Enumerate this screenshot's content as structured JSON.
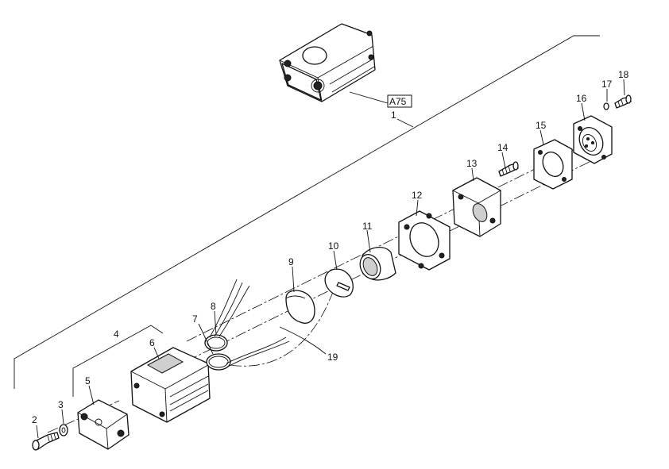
{
  "reference_box": "A75",
  "callouts": {
    "c1": "1",
    "c2": "2",
    "c3": "3",
    "c4": "4",
    "c5": "5",
    "c6": "6",
    "c7": "7",
    "c8": "8",
    "c9": "9",
    "c10": "10",
    "c11": "11",
    "c12": "12",
    "c13": "13",
    "c14": "14",
    "c15": "15",
    "c16": "16",
    "c17": "17",
    "c18": "18",
    "c19": "19"
  }
}
